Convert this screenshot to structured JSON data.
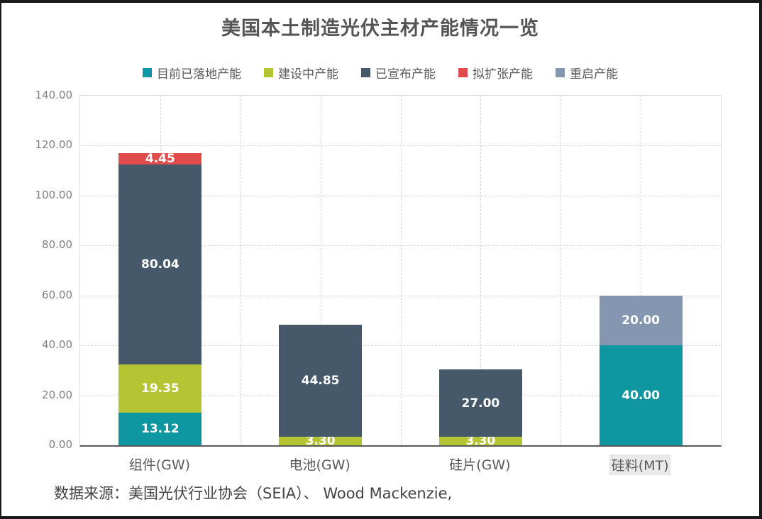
{
  "title": "美国本土制造光伏主材产能情况一览",
  "source_note": "数据来源：美国光伏行业协会（SEIA）、 Wood Mackenzie,",
  "colors": {
    "landed": "#0f97a1",
    "under_construction": "#b4c433",
    "announced": "#45596a",
    "planned_expansion": "#e04b4b",
    "restart": "#8496b0",
    "title_text": "#545454",
    "axis_text": "#7f7f7f",
    "gridline": "#d9d9d9",
    "axis_line": "#595959"
  },
  "chart_data": {
    "type": "bar",
    "stacked": true,
    "title": "美国本土制造光伏主材产能情况一览",
    "categories": [
      "组件(GW)",
      "电池(GW)",
      "硅片(GW)",
      "硅料(MT)"
    ],
    "series": [
      {
        "name": "目前已落地产能",
        "color": "#0f97a1",
        "values": [
          13.12,
          0,
          0,
          40.0
        ]
      },
      {
        "name": "建设中产能",
        "color": "#b4c433",
        "values": [
          19.35,
          3.3,
          3.3,
          0
        ]
      },
      {
        "name": "已宣布产能",
        "color": "#45596a",
        "values": [
          80.04,
          44.85,
          27.0,
          0
        ]
      },
      {
        "name": "拟扩张产能",
        "color": "#e04b4b",
        "values": [
          4.45,
          0,
          0,
          0
        ]
      },
      {
        "name": "重启产能",
        "color": "#8496b0",
        "values": [
          0,
          0,
          0,
          20.0
        ]
      }
    ],
    "totals": [
      116.96,
      48.15,
      30.3,
      60.0
    ],
    "ylim": [
      0,
      140
    ],
    "ytick_step": 20,
    "ytick_labels": [
      "0.00",
      "20.00",
      "40.00",
      "60.00",
      "80.00",
      "100.00",
      "120.00",
      "140.00"
    ],
    "grid": "dashed",
    "legend_position": "top",
    "value_label_format": "2dp",
    "highlighted_xlabel_index": 3
  }
}
